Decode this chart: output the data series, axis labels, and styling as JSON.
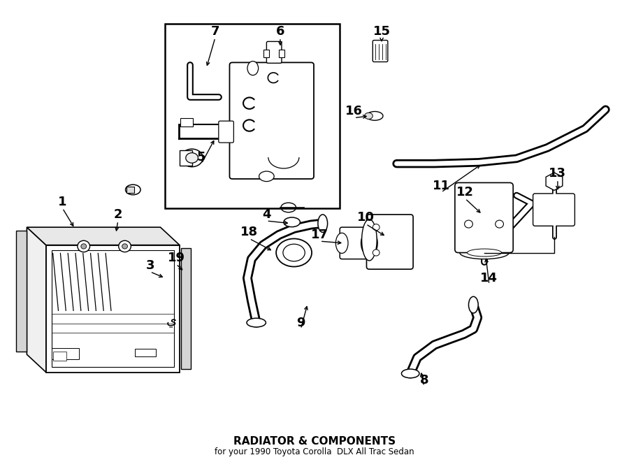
{
  "title": "RADIATOR & COMPONENTS",
  "subtitle": "for your 1990 Toyota Corolla  DLX All Trac Sedan",
  "bg_color": "#ffffff",
  "line_color": "#000000",
  "fig_width": 9.0,
  "fig_height": 6.61,
  "dpi": 100
}
